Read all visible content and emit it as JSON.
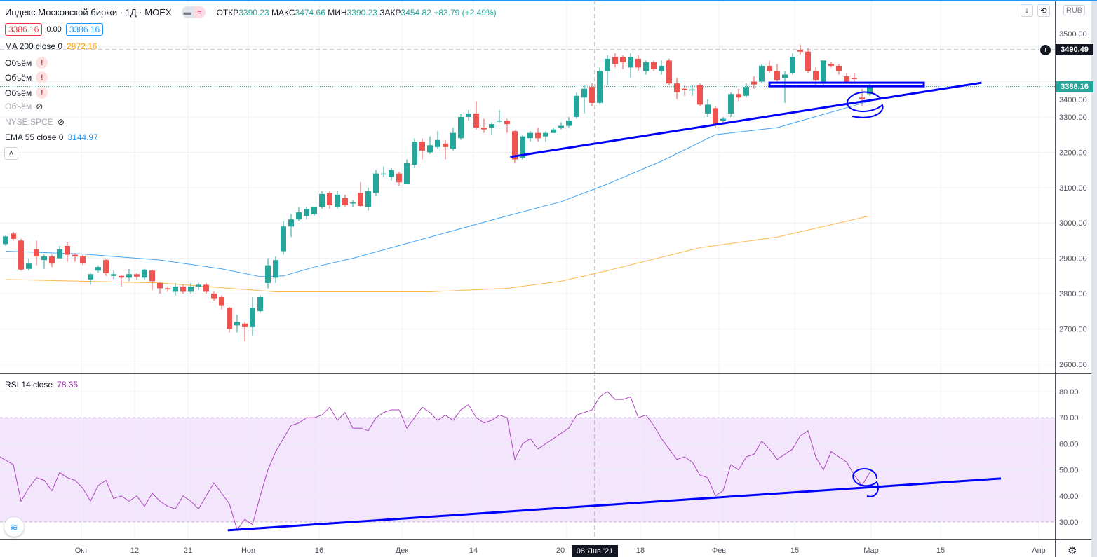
{
  "header": {
    "title": "Индекс Московской биржи · 1Д · MOEX",
    "open_label": "ОТКР",
    "open": "3390.23",
    "high_label": "МАКС",
    "high": "3474.66",
    "low_label": "МИН",
    "low": "3390.23",
    "close_label": "ЗАКР",
    "close": "3454.82",
    "change": "+83.79 (+2.49%)",
    "bid": "3386.16",
    "spread": "0.00",
    "ask": "3386.16"
  },
  "legend": {
    "ma": {
      "label": "MA 200 close 0",
      "value": "2872.16",
      "color": "#ff9800"
    },
    "volumes": [
      "Объём",
      "Объём",
      "Объём",
      "Объём"
    ],
    "spce": "NYSE:SPCE",
    "ema": {
      "label": "EMA 55 close 0",
      "value": "3144.97",
      "color": "#2196f3"
    },
    "rsi": {
      "label": "RSI 14 close",
      "value": "78.35",
      "color": "#9c27b0"
    }
  },
  "axis": {
    "currency": "RUB",
    "price_ticks": [
      "3500.00",
      "3400.00",
      "3300.00",
      "3200.00",
      "3100.00",
      "3000.00",
      "2900.00",
      "2800.00",
      "2700.00",
      "2600.00"
    ],
    "rsi_ticks": [
      "80.00",
      "70.00",
      "60.00",
      "50.00",
      "40.00",
      "30.00"
    ],
    "time_labels": [
      "Окт",
      "12",
      "21",
      "Ноя",
      "16",
      "Дек",
      "14",
      "20",
      "18",
      "Фев",
      "15",
      "Мар",
      "15",
      "Апр"
    ],
    "crosshair_time": "08 Янв '21",
    "crosshair_price": "3490.49",
    "last_price": "3386.16"
  },
  "colors": {
    "up": "#26a69a",
    "down": "#ef5350",
    "drawing": "#0000ff",
    "rsi_band": "#f3e5fc"
  },
  "chart_data": {
    "type": "candlestick",
    "title": "Индекс Московской биржи · 1Д · MOEX",
    "ylim": [
      2580,
      3530
    ],
    "rsi_ylim": [
      24,
      84
    ],
    "rsi_band": [
      30,
      70
    ],
    "candles": [
      [
        2940,
        2965,
        2935,
        2962
      ],
      [
        2970,
        2975,
        2950,
        2955
      ],
      [
        2950,
        2955,
        2865,
        2868
      ],
      [
        2870,
        2900,
        2865,
        2885
      ],
      [
        2925,
        2950,
        2880,
        2905
      ],
      [
        2895,
        2910,
        2870,
        2905
      ],
      [
        2905,
        2910,
        2875,
        2885
      ],
      [
        2900,
        2935,
        2900,
        2925
      ],
      [
        2935,
        2945,
        2890,
        2910
      ],
      [
        2910,
        2915,
        2890,
        2905
      ],
      [
        2905,
        2910,
        2880,
        2885
      ],
      [
        2840,
        2860,
        2825,
        2855
      ],
      [
        2865,
        2880,
        2860,
        2875
      ],
      [
        2895,
        2897,
        2850,
        2858
      ],
      [
        2850,
        2865,
        2842,
        2855
      ],
      [
        2850,
        2852,
        2820,
        2845
      ],
      [
        2845,
        2870,
        2835,
        2855
      ],
      [
        2855,
        2858,
        2840,
        2848
      ],
      [
        2845,
        2870,
        2840,
        2868
      ],
      [
        2865,
        2868,
        2810,
        2835
      ],
      [
        2830,
        2832,
        2800,
        2815
      ],
      [
        2815,
        2820,
        2805,
        2812
      ],
      [
        2805,
        2830,
        2795,
        2820
      ],
      [
        2820,
        2825,
        2800,
        2805
      ],
      [
        2805,
        2830,
        2800,
        2820
      ],
      [
        2820,
        2830,
        2810,
        2825
      ],
      [
        2825,
        2830,
        2800,
        2805
      ],
      [
        2800,
        2805,
        2780,
        2785
      ],
      [
        2790,
        2795,
        2755,
        2765
      ],
      [
        2760,
        2762,
        2690,
        2700
      ],
      [
        2710,
        2740,
        2690,
        2720
      ],
      [
        2715,
        2720,
        2665,
        2705
      ],
      [
        2705,
        2790,
        2680,
        2760
      ],
      [
        2750,
        2795,
        2745,
        2790
      ],
      [
        2830,
        2900,
        2815,
        2880
      ],
      [
        2845,
        2905,
        2830,
        2895
      ],
      [
        2920,
        3005,
        2910,
        2990
      ],
      [
        2990,
        3025,
        2960,
        3010
      ],
      [
        3010,
        3045,
        3005,
        3030
      ],
      [
        3020,
        3045,
        3010,
        3040
      ],
      [
        3025,
        3045,
        3020,
        3045
      ],
      [
        3045,
        3090,
        3040,
        3082
      ],
      [
        3085,
        3090,
        3040,
        3050
      ],
      [
        3045,
        3090,
        3040,
        3080
      ],
      [
        3070,
        3080,
        3045,
        3050
      ],
      [
        3055,
        3065,
        3045,
        3058
      ],
      [
        3085,
        3115,
        3045,
        3048
      ],
      [
        3045,
        3100,
        3035,
        3090
      ],
      [
        3085,
        3150,
        3075,
        3140
      ],
      [
        3140,
        3160,
        3130,
        3140
      ],
      [
        3130,
        3155,
        3120,
        3150
      ],
      [
        3140,
        3145,
        3105,
        3115
      ],
      [
        3110,
        3180,
        3110,
        3170
      ],
      [
        3165,
        3240,
        3155,
        3230
      ],
      [
        3230,
        3240,
        3180,
        3205
      ],
      [
        3200,
        3245,
        3195,
        3220
      ],
      [
        3215,
        3260,
        3210,
        3235
      ],
      [
        3225,
        3235,
        3180,
        3215
      ],
      [
        3210,
        3270,
        3205,
        3255
      ],
      [
        3240,
        3310,
        3235,
        3300
      ],
      [
        3300,
        3320,
        3290,
        3310
      ],
      [
        3310,
        3345,
        3265,
        3270
      ],
      [
        3270,
        3295,
        3255,
        3265
      ],
      [
        3270,
        3285,
        3250,
        3280
      ],
      [
        3290,
        3320,
        3285,
        3290
      ],
      [
        3290,
        3295,
        3255,
        3280
      ],
      [
        3260,
        3262,
        3170,
        3180
      ],
      [
        3185,
        3250,
        3180,
        3245
      ],
      [
        3240,
        3260,
        3230,
        3255
      ],
      [
        3255,
        3270,
        3230,
        3240
      ],
      [
        3245,
        3260,
        3230,
        3255
      ],
      [
        3255,
        3270,
        3255,
        3265
      ],
      [
        3270,
        3285,
        3265,
        3275
      ],
      [
        3275,
        3300,
        3270,
        3290
      ],
      [
        3300,
        3370,
        3295,
        3360
      ],
      [
        3355,
        3390,
        3310,
        3380
      ],
      [
        3385,
        3395,
        3330,
        3340
      ],
      [
        3340,
        3440,
        3335,
        3430
      ],
      [
        3430,
        3475,
        3390,
        3465
      ],
      [
        3470,
        3480,
        3440,
        3450
      ],
      [
        3470,
        3475,
        3435,
        3455
      ],
      [
        3440,
        3480,
        3410,
        3470
      ],
      [
        3465,
        3475,
        3430,
        3440
      ],
      [
        3430,
        3460,
        3420,
        3455
      ],
      [
        3455,
        3460,
        3430,
        3435
      ],
      [
        3430,
        3460,
        3420,
        3445
      ],
      [
        3460,
        3465,
        3390,
        3395
      ],
      [
        3395,
        3410,
        3350,
        3370
      ],
      [
        3380,
        3390,
        3360,
        3378
      ],
      [
        3375,
        3390,
        3360,
        3378
      ],
      [
        3390,
        3395,
        3330,
        3335
      ],
      [
        3310,
        3350,
        3300,
        3335
      ],
      [
        3325,
        3330,
        3270,
        3280
      ],
      [
        3290,
        3300,
        3280,
        3295
      ],
      [
        3310,
        3370,
        3300,
        3365
      ],
      [
        3365,
        3380,
        3345,
        3355
      ],
      [
        3360,
        3395,
        3355,
        3385
      ],
      [
        3400,
        3415,
        3380,
        3392
      ],
      [
        3400,
        3450,
        3395,
        3445
      ],
      [
        3445,
        3460,
        3425,
        3430
      ],
      [
        3430,
        3450,
        3395,
        3405
      ],
      [
        3410,
        3430,
        3340,
        3420
      ],
      [
        3425,
        3480,
        3420,
        3470
      ],
      [
        3490,
        3505,
        3475,
        3485
      ],
      [
        3485,
        3495,
        3425,
        3430
      ],
      [
        3430,
        3440,
        3390,
        3405
      ],
      [
        3400,
        3460,
        3385,
        3460
      ],
      [
        3450,
        3455,
        3440,
        3445
      ],
      [
        3445,
        3450,
        3420,
        3430
      ],
      [
        3415,
        3425,
        3395,
        3400
      ],
      [
        3410,
        3425,
        3400,
        3408
      ],
      [
        3355,
        3380,
        3330,
        3350
      ],
      [
        3365,
        3395,
        3360,
        3386
      ]
    ],
    "ema55": [
      [
        0,
        2920
      ],
      [
        10,
        2912
      ],
      [
        20,
        2895
      ],
      [
        28,
        2870
      ],
      [
        33,
        2848
      ],
      [
        36,
        2850
      ],
      [
        40,
        2875
      ],
      [
        45,
        2900
      ],
      [
        55,
        2960
      ],
      [
        65,
        3020
      ],
      [
        72,
        3060
      ],
      [
        78,
        3110
      ],
      [
        85,
        3175
      ],
      [
        92,
        3250
      ],
      [
        100,
        3270
      ],
      [
        112,
        3345
      ]
    ],
    "ma200": [
      [
        0,
        2840
      ],
      [
        20,
        2830
      ],
      [
        35,
        2805
      ],
      [
        55,
        2805
      ],
      [
        65,
        2815
      ],
      [
        72,
        2835
      ],
      [
        78,
        2865
      ],
      [
        90,
        2930
      ],
      [
        100,
        2960
      ],
      [
        112,
        3020
      ]
    ],
    "rsi": [
      55,
      52,
      38,
      43,
      47,
      46,
      42,
      49,
      47,
      46,
      43,
      38,
      44,
      46,
      39,
      40,
      38,
      40,
      36,
      41,
      38,
      36,
      35,
      40,
      38,
      35,
      40,
      45,
      41,
      37,
      27,
      31,
      29,
      40,
      50,
      57,
      62,
      67,
      68,
      70,
      70,
      71,
      74,
      69,
      72,
      66,
      66,
      65,
      70,
      72,
      73,
      73,
      66,
      70,
      74,
      72,
      69,
      71,
      69,
      73,
      75,
      70,
      68,
      69,
      71,
      70,
      54,
      60,
      62,
      58,
      60,
      62,
      64,
      66,
      71,
      72,
      73,
      78,
      80,
      77,
      77,
      78,
      70,
      71,
      67,
      62,
      58,
      54,
      55,
      53,
      48,
      47,
      40,
      42,
      52,
      50,
      55,
      56,
      61,
      58,
      54,
      56,
      58,
      63,
      65,
      55,
      50,
      57,
      55,
      53,
      48,
      44,
      49
    ],
    "drawings": {
      "price_trendline": [
        [
          65.4,
          3187
        ],
        [
          126.5,
          3397
        ]
      ],
      "price_rectangle": [
        [
          99,
          3397
        ],
        [
          119,
          3387
        ]
      ],
      "rsi_trendline": [
        [
          28.8,
          26.8
        ],
        [
          129,
          46.7
        ]
      ]
    }
  }
}
